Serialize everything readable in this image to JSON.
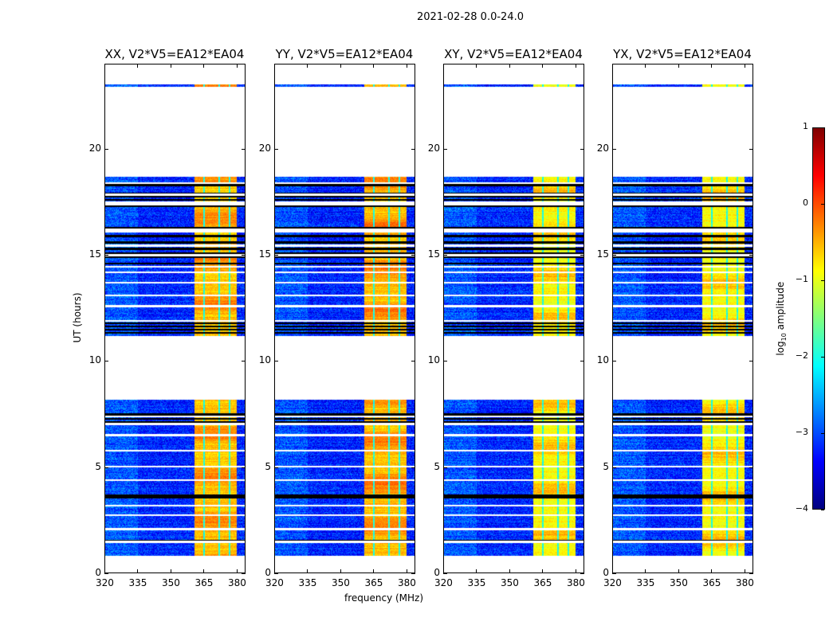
{
  "chart_data": {
    "type": "heatmap",
    "title": "2021-02-28 0.0-24.0",
    "panels": [
      {
        "title": "XX, V2*V5=EA12*EA04",
        "band_level": -0.6
      },
      {
        "title": "YY, V2*V5=EA12*EA04",
        "band_level": -0.55
      },
      {
        "title": "XY, V2*V5=EA12*EA04",
        "band_level": -0.9
      },
      {
        "title": "YX, V2*V5=EA12*EA04",
        "band_level": -0.9
      }
    ],
    "xlabel": "frequency (MHz)",
    "ylabel": "UT (hours)",
    "xlim": [
      320,
      384
    ],
    "ylim": [
      0,
      24
    ],
    "xticks": [
      320,
      335,
      350,
      365,
      380
    ],
    "xtick_labels": [
      "320",
      "335",
      "350",
      "365",
      "380"
    ],
    "yticks": [
      0,
      5,
      10,
      15,
      20
    ],
    "ytick_labels": [
      "0",
      "5",
      "10",
      "15",
      "20"
    ],
    "colorbar": {
      "label_main": "log",
      "label_sub": "10",
      "label_rest": " amplitude",
      "range": [
        -4,
        1
      ],
      "ticks": [
        1,
        0,
        -1,
        -2,
        -3,
        -4
      ],
      "tick_labels": [
        "1",
        "0",
        "−1",
        "−2",
        "−3",
        "−4"
      ]
    },
    "data_segments_hours": [
      [
        0.85,
        8.2
      ],
      [
        11.2,
        18.7
      ],
      [
        22.95,
        23.05
      ]
    ],
    "background_level": -3.2,
    "bright_band_mhz": [
      360.5,
      380
    ],
    "band_dips_mhz": [
      [
        364.6,
        365.4
      ],
      [
        371.6,
        372.4
      ],
      [
        376.2,
        377.0
      ]
    ],
    "white_gaps_hours": [
      1.5,
      2.1,
      2.75,
      3.2,
      4.4,
      5.05,
      5.8,
      6.52,
      6.56,
      7.05,
      7.4,
      11.9,
      12.6,
      13.1,
      13.7,
      14.2,
      14.45,
      15.0,
      15.45,
      16.1,
      16.2,
      17.4,
      17.5,
      17.85,
      18.4
    ],
    "flagged_black_hours": [
      1.55,
      3.6,
      3.7,
      7.15,
      7.3,
      7.5,
      11.35,
      11.5,
      11.65,
      11.8,
      14.6,
      14.9,
      15.1,
      15.3,
      15.6,
      15.9,
      16.3,
      17.3,
      17.6,
      17.75,
      17.9,
      18.3
    ]
  }
}
